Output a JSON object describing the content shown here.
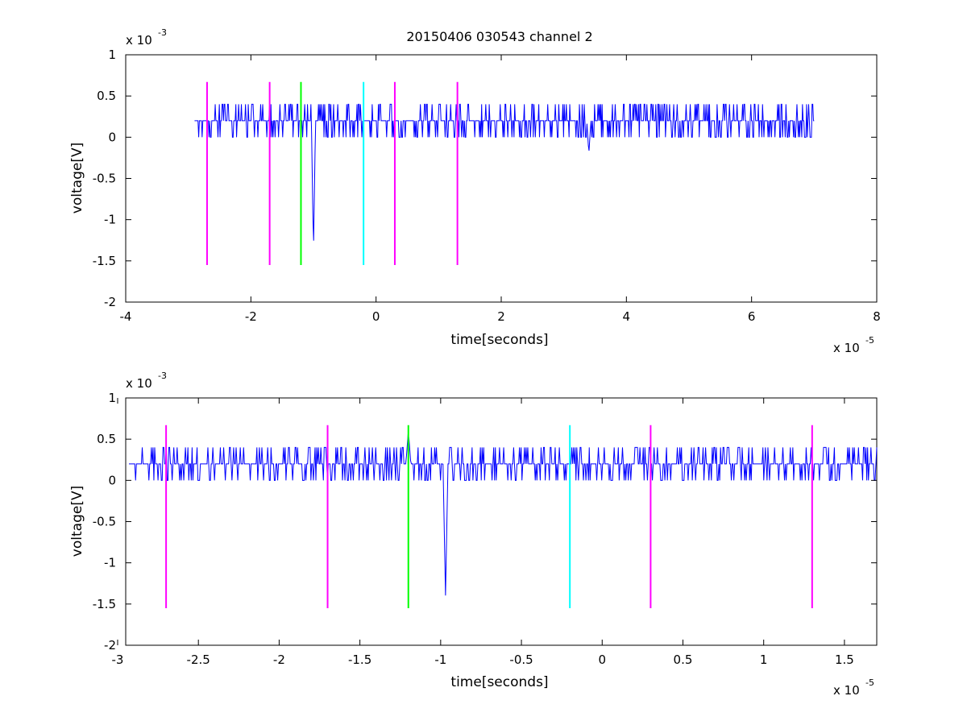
{
  "figure": {
    "title": "20150406 030543 channel 2"
  },
  "chart_data": [
    {
      "type": "line",
      "title": "20150406 030543 channel 2",
      "xlabel": "time[seconds]",
      "ylabel": "voltage[V]",
      "x_exponent_label": "x 10",
      "x_exponent": "-5",
      "y_exponent_label": "x 10",
      "y_exponent": "-3",
      "xlim": [
        -4,
        8
      ],
      "ylim": [
        -2,
        1
      ],
      "xticks": [
        -4,
        -2,
        0,
        2,
        4,
        6,
        8
      ],
      "xtick_labels": [
        "-4",
        "-2",
        "0",
        "2",
        "4",
        "6",
        "8"
      ],
      "yticks": [
        -2,
        -1.5,
        -1,
        -0.5,
        0,
        0.5,
        1
      ],
      "ytick_labels": [
        "-2",
        "-1.5",
        "-1",
        "-0.5",
        "0",
        "0.5",
        "1"
      ],
      "grid": false,
      "signal": {
        "color": "#0000ff",
        "x_range": [
          -2.9,
          7.0
        ],
        "baseline": 0.2,
        "levels": [
          0,
          0.2,
          0.4
        ],
        "features": [
          {
            "x": -1.0,
            "y": -1.4,
            "note": "spike"
          },
          {
            "x": 3.4,
            "y": -0.2,
            "note": "dip"
          }
        ]
      },
      "markers": [
        {
          "x": -2.7,
          "color": "#ff00ff"
        },
        {
          "x": -1.7,
          "color": "#ff00ff"
        },
        {
          "x": -1.2,
          "color": "#00ff00"
        },
        {
          "x": -0.2,
          "color": "#00ffff"
        },
        {
          "x": 0.3,
          "color": "#ff00ff"
        },
        {
          "x": 1.3,
          "color": "#ff00ff"
        }
      ],
      "marker_ylim": [
        -1.55,
        0.67
      ]
    },
    {
      "type": "line",
      "title": "",
      "xlabel": "time[seconds]",
      "ylabel": "voltage[V]",
      "x_exponent_label": "x 10",
      "x_exponent": "-5",
      "y_exponent_label": "x 10",
      "y_exponent": "-3",
      "xlim": [
        -2.95,
        1.7
      ],
      "ylim": [
        -2,
        1
      ],
      "xticks": [
        -3,
        -2.5,
        -2,
        -1.5,
        -1,
        -0.5,
        0,
        0.5,
        1,
        1.5
      ],
      "xtick_labels": [
        "-3",
        "-2.5",
        "-2",
        "-1.5",
        "-1",
        "-0.5",
        "0",
        "0.5",
        "1",
        "1.5"
      ],
      "yticks": [
        -2,
        -1.5,
        -1,
        -0.5,
        0,
        0.5,
        1
      ],
      "ytick_labels": [
        "-2",
        "-1.5",
        "-1",
        "-0.5",
        "0",
        "0.5",
        "1"
      ],
      "grid": false,
      "signal": {
        "color": "#0000ff",
        "x_range": [
          -2.93,
          1.7
        ],
        "baseline": 0.2,
        "levels": [
          0,
          0.2,
          0.4
        ],
        "features": [
          {
            "x": -0.97,
            "y": -1.4,
            "note": "spike"
          },
          {
            "x": -1.2,
            "y": 0.6,
            "note": "peak"
          }
        ]
      },
      "markers": [
        {
          "x": -2.7,
          "color": "#ff00ff"
        },
        {
          "x": -1.7,
          "color": "#ff00ff"
        },
        {
          "x": -1.2,
          "color": "#00ff00"
        },
        {
          "x": -0.2,
          "color": "#00ffff"
        },
        {
          "x": 0.3,
          "color": "#ff00ff"
        },
        {
          "x": 1.3,
          "color": "#ff00ff"
        }
      ],
      "marker_ylim": [
        -1.55,
        0.67
      ]
    }
  ]
}
